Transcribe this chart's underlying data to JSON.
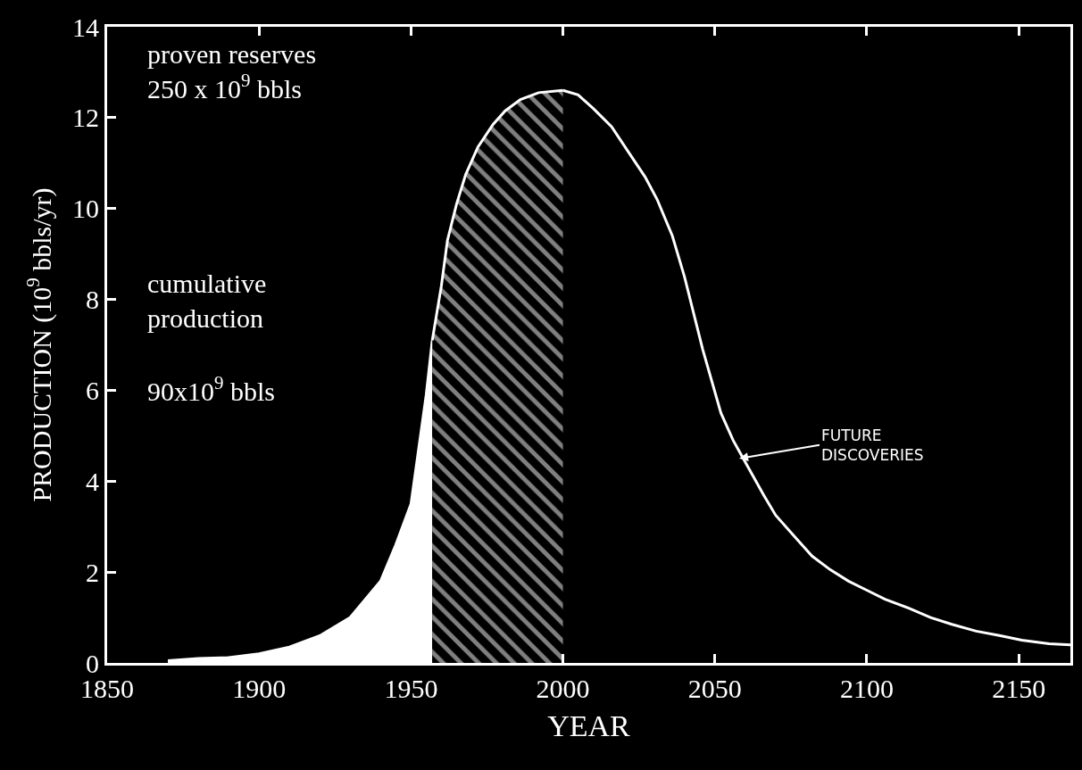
{
  "chart_data": {
    "type": "area",
    "xlabel": "YEAR",
    "ylabel": "PRODUCTION (10$^{9}$ bbls/yr)",
    "xlim": [
      1850,
      2167
    ],
    "ylim": [
      0,
      14
    ],
    "xticks": [
      1850,
      1900,
      1950,
      2000,
      2050,
      2100,
      2150
    ],
    "yticks": [
      0,
      2,
      4,
      6,
      8,
      10,
      12,
      14
    ],
    "grid": false,
    "series": [
      {
        "color": "#ffffff",
        "x": [
          1870,
          1880,
          1890,
          1900,
          1910,
          1920,
          1930,
          1940,
          1945,
          1950,
          1955,
          1957
        ],
        "values": [
          0.05,
          0.1,
          0.12,
          0.2,
          0.35,
          0.6,
          1.0,
          1.8,
          2.6,
          3.5,
          5.9,
          7.1
        ]
      },
      {
        "color": "#ffffff",
        "x": [
          1957,
          1960,
          1962,
          1965,
          1968,
          1972,
          1977,
          1981,
          1986,
          1992,
          2000
        ],
        "values": [
          7.1,
          8.3,
          9.3,
          10.1,
          10.75,
          11.35,
          11.85,
          12.15,
          12.4,
          12.55,
          12.6
        ]
      },
      {
        "type": "line",
        "color": "#ffffff",
        "x": [
          2000,
          2005,
          2010,
          2016,
          2022,
          2027,
          2031,
          2036,
          2040,
          2046,
          2052,
          2056,
          2061,
          2066,
          2070,
          2076,
          2082,
          2088,
          2094,
          2100,
          2106,
          2114,
          2121,
          2128,
          2136,
          2144,
          2151,
          2160,
          2167
        ],
        "values": [
          12.6,
          12.5,
          12.2,
          11.8,
          11.2,
          10.7,
          10.2,
          9.4,
          8.5,
          6.9,
          5.5,
          4.9,
          4.3,
          3.7,
          3.25,
          2.8,
          2.35,
          2.05,
          1.8,
          1.6,
          1.4,
          1.2,
          1.0,
          0.85,
          0.7,
          0.6,
          0.5,
          0.42,
          0.4
        ]
      }
    ],
    "annotations": [
      "proven reserves\n250 x 10$^{9}$ bbls",
      "cumulative\nproduction",
      "90x10$^{9}$ bbls",
      {
        "text": "FUTURE\nDISCOVERIES",
        "x": 2058,
        "y": 4.5
      }
    ]
  }
}
